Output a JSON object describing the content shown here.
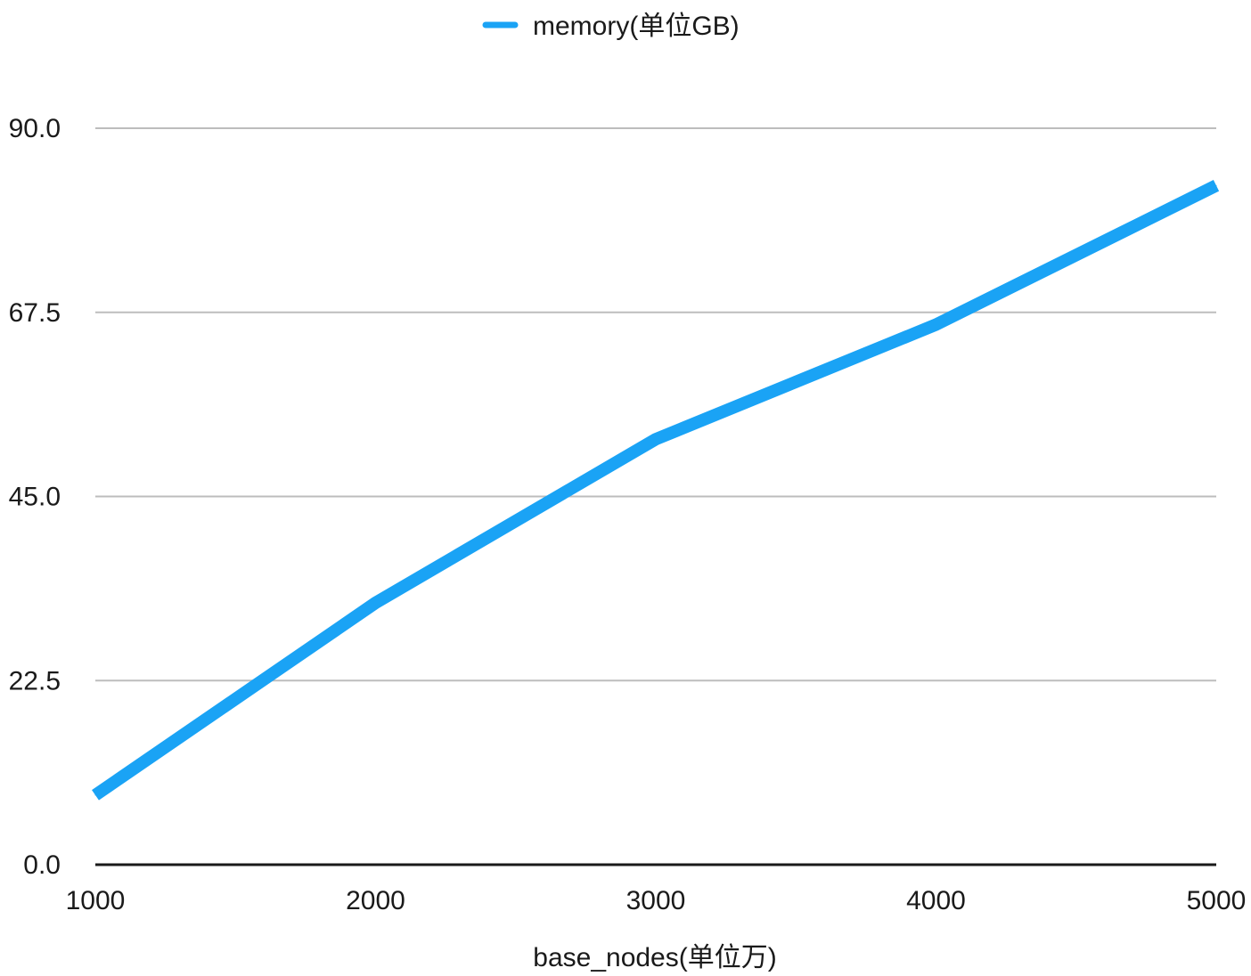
{
  "chart_data": {
    "type": "line",
    "x": [
      1000,
      2000,
      3000,
      4000,
      5000
    ],
    "series": [
      {
        "name": "memory(单位GB)",
        "values": [
          8.5,
          32.0,
          52.0,
          66.0,
          83.0
        ],
        "color": "#1aa3f5"
      }
    ],
    "xlabel": "base_nodes(单位万)",
    "ylabel": "",
    "xlim": [
      1000,
      5000
    ],
    "ylim": [
      0,
      90
    ],
    "x_ticks": [
      "1000",
      "2000",
      "3000",
      "4000",
      "5000"
    ],
    "y_ticks": [
      "0.0",
      "22.5",
      "45.0",
      "67.5",
      "90.0"
    ],
    "grid": true,
    "legend_position": "top-center",
    "gridline_color": "#bdbdbd",
    "axis_color": "#1a1a1a"
  }
}
